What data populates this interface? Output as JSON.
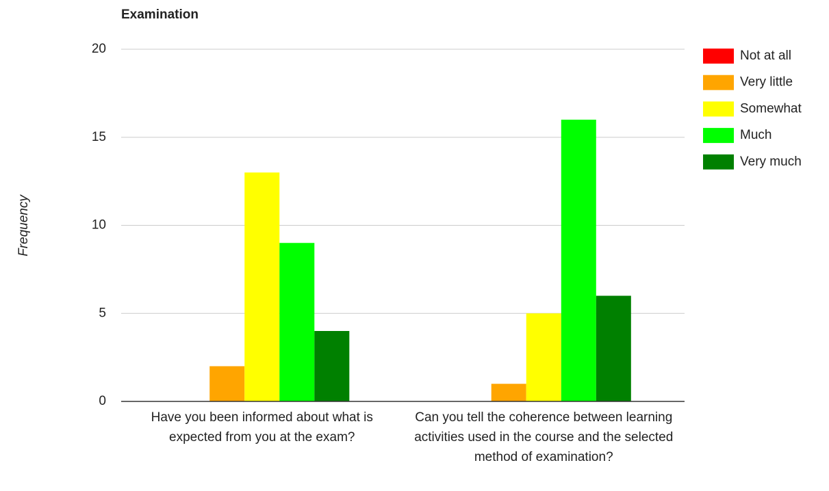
{
  "chart_data": {
    "type": "bar",
    "title": "Examination",
    "y_label": "Frequency",
    "categories": [
      "Have you been informed about what is expected from you at the exam?",
      "Can you tell the coherence between learning activities used in the course and the selected method of examination?"
    ],
    "series": [
      {
        "name": "Not at all",
        "color": "#ff0000",
        "values": [
          0,
          0
        ]
      },
      {
        "name": "Very little",
        "color": "#ffa500",
        "values": [
          2,
          1
        ]
      },
      {
        "name": "Somewhat",
        "color": "#ffff00",
        "values": [
          13,
          5
        ]
      },
      {
        "name": "Much",
        "color": "#00ff00",
        "values": [
          9,
          16
        ]
      },
      {
        "name": "Very much",
        "color": "#008000",
        "values": [
          4,
          6
        ]
      }
    ],
    "ylim": [
      0,
      20
    ],
    "yticks": [
      0,
      5,
      10,
      15,
      20
    ],
    "grid": true,
    "legend": "right"
  }
}
